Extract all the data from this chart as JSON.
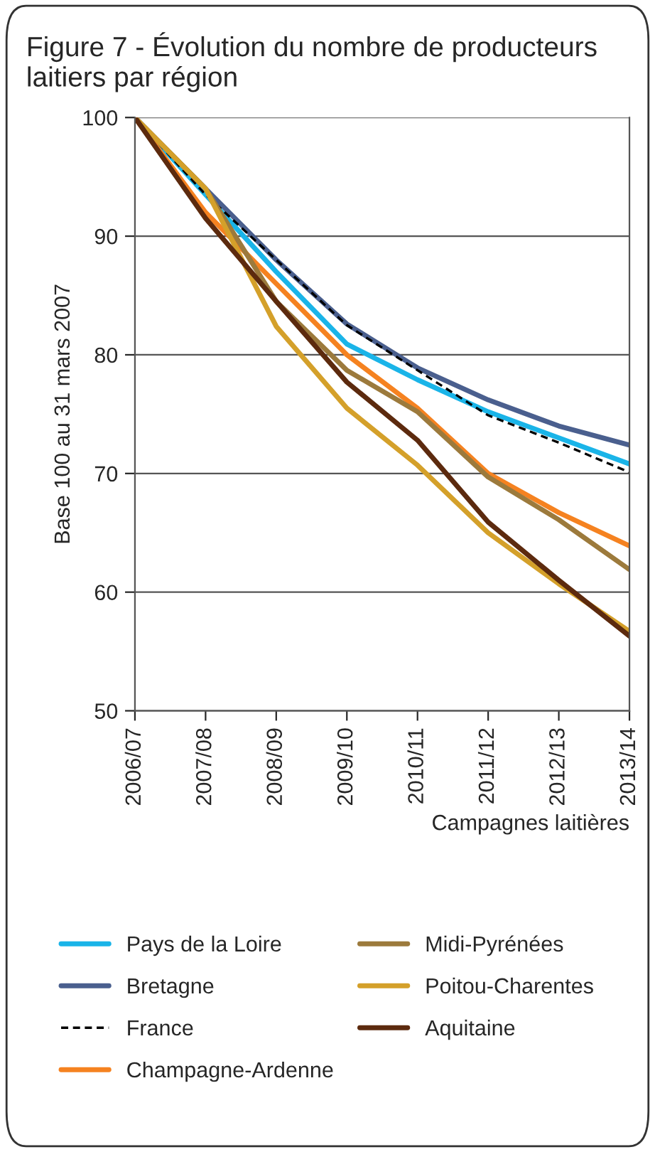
{
  "chart_data": {
    "type": "line",
    "title": "Figure 7 - Évolution du nombre de producteurs laitiers par région",
    "xlabel": "Campagnes laitières",
    "ylabel": "Base 100 au 31 mars 2007",
    "categories": [
      "2006/07",
      "2007/08",
      "2008/09",
      "2009/10",
      "2010/11",
      "2011/12",
      "2012/13",
      "2013/14"
    ],
    "series": [
      {
        "name": "Pays de la Loire",
        "color": "#1ab4e8",
        "values": [
          100,
          93.5,
          87,
          80.9,
          77.9,
          75.2,
          73.0,
          70.8
        ]
      },
      {
        "name": "Bretagne",
        "color": "#4a5f8e",
        "values": [
          100,
          94,
          88,
          82.6,
          78.9,
          76.2,
          74.0,
          72.4
        ]
      },
      {
        "name": "France",
        "color": "#000000",
        "line_style": "dashed",
        "values": [
          100,
          93.5,
          88,
          82.5,
          78.7,
          74.9,
          72.6,
          70.1
        ]
      },
      {
        "name": "Champagne-Ardenne",
        "color": "#f58220",
        "values": [
          100,
          92,
          86,
          80,
          75.5,
          70.0,
          66.7,
          63.9
        ]
      },
      {
        "name": "Midi-Pyrénées",
        "color": "#9c7a3c",
        "values": [
          100,
          94,
          84.5,
          78.7,
          75.2,
          69.7,
          66.1,
          61.9
        ]
      },
      {
        "name": "Poitou-Charentes",
        "color": "#d4a02a",
        "values": [
          100,
          94,
          82.4,
          75.5,
          70.7,
          65.0,
          60.7,
          56.7
        ]
      },
      {
        "name": "Aquitaine",
        "color": "#5c2a0e",
        "values": [
          100,
          91.5,
          84.5,
          77.7,
          72.8,
          65.9,
          61.0,
          56.3
        ]
      }
    ],
    "ylim": [
      50,
      100
    ],
    "yticks": [
      50,
      60,
      70,
      80,
      90,
      100
    ],
    "grid": "y",
    "legend": "bottom",
    "line_style": "solid",
    "marker": "none"
  }
}
